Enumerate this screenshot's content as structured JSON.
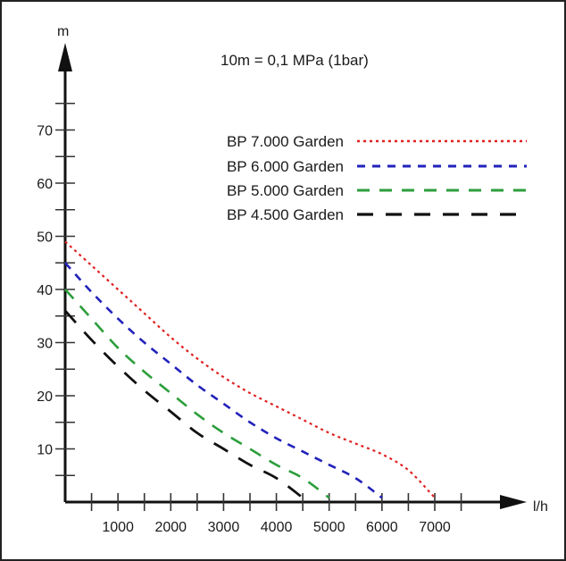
{
  "chart_data": {
    "type": "line",
    "title": "",
    "annotation": "10m = 0,1 MPa (1bar)",
    "xlabel": "l/h",
    "ylabel": "m",
    "xlim": [
      0,
      8500
    ],
    "ylim": [
      0,
      80
    ],
    "x_ticks": [
      1000,
      2000,
      3000,
      4000,
      5000,
      6000,
      7000
    ],
    "x_minor_ticks": [
      500,
      1000,
      1500,
      2000,
      2500,
      3000,
      3500,
      4000,
      4500,
      5000,
      5500,
      6000,
      6500,
      7000,
      7500
    ],
    "y_ticks": [
      10,
      20,
      30,
      40,
      50,
      60,
      70
    ],
    "y_minor_ticks": [
      5,
      10,
      15,
      20,
      25,
      30,
      35,
      40,
      45,
      50,
      55,
      60,
      65,
      70,
      75
    ],
    "grid": false,
    "legend_position": "top-right",
    "series": [
      {
        "name": "BP 7.000 Garden",
        "color": "#e02020",
        "dash": "dotted",
        "x": [
          0,
          500,
          1000,
          1500,
          2000,
          2500,
          3000,
          3500,
          4000,
          4500,
          5000,
          5500,
          6000,
          6500,
          7000
        ],
        "y": [
          49,
          44.5,
          40,
          35.5,
          31,
          27,
          23.5,
          20.5,
          18,
          15.5,
          13,
          11,
          9,
          6,
          0.8
        ]
      },
      {
        "name": "BP 6.000 Garden",
        "color": "#2222bb",
        "dash": "short",
        "x": [
          0,
          500,
          1000,
          1500,
          2000,
          2500,
          3000,
          3500,
          4000,
          4500,
          5000,
          5500,
          6000
        ],
        "y": [
          45,
          39.5,
          34.5,
          30,
          26,
          22,
          18.5,
          15,
          12,
          9.5,
          7,
          4.5,
          0.8
        ]
      },
      {
        "name": "BP 5.000 Garden",
        "color": "#2c9e3c",
        "dash": "long",
        "x": [
          0,
          500,
          1000,
          1500,
          2000,
          2500,
          3000,
          3500,
          4000,
          4500,
          5000
        ],
        "y": [
          40,
          34.5,
          29,
          24.5,
          20.5,
          16.5,
          13,
          10,
          7,
          4.5,
          0.8
        ]
      },
      {
        "name": "BP 4.500 Garden",
        "color": "#111111",
        "dash": "longer",
        "x": [
          0,
          500,
          1000,
          1500,
          2000,
          2500,
          3000,
          3500,
          4000,
          4500
        ],
        "y": [
          36,
          30.5,
          25.5,
          21,
          17,
          13,
          10,
          7,
          4.5,
          0.8
        ]
      }
    ]
  }
}
